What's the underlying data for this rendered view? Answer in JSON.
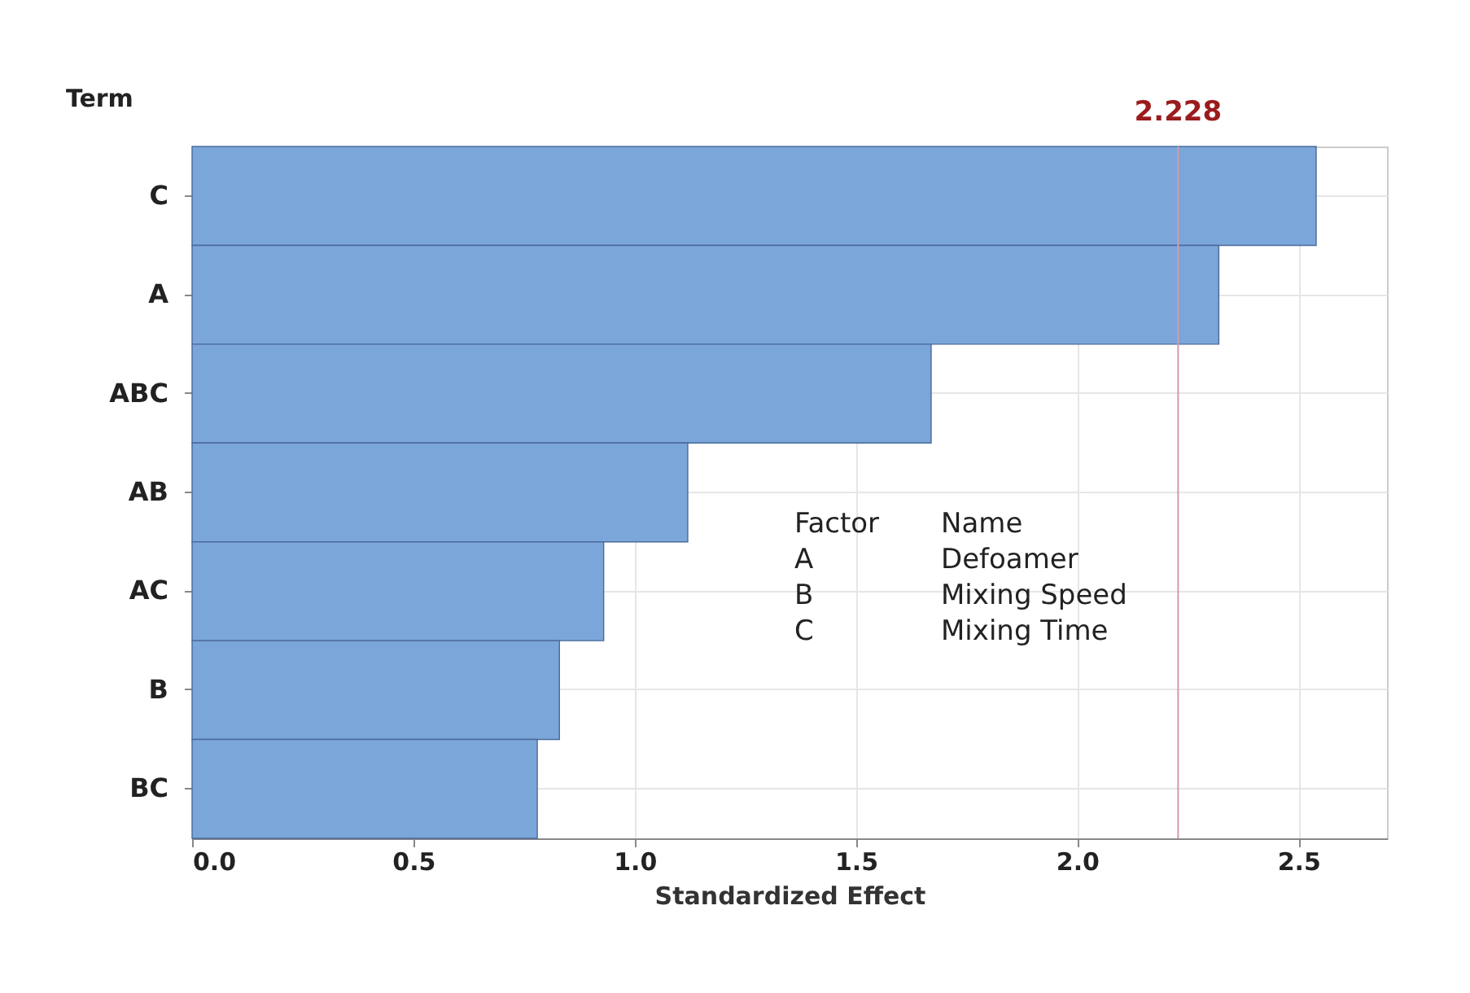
{
  "chart_data": {
    "type": "bar",
    "orientation": "horizontal",
    "ylabel": "Term",
    "xlabel": "Standardized Effect",
    "categories": [
      "C",
      "A",
      "ABC",
      "AB",
      "AC",
      "B",
      "BC"
    ],
    "values": [
      2.54,
      2.32,
      1.67,
      1.12,
      0.93,
      0.83,
      0.78
    ],
    "color": "#7ba6d9",
    "xlim": [
      0,
      2.7
    ],
    "xticks": [
      {
        "value": 0,
        "label": "0.0"
      },
      0.5,
      {
        "value": 1,
        "label": "1.0"
      },
      1.5,
      {
        "value": 2,
        "label": "2.0"
      },
      2.5
    ],
    "grid": true,
    "ref_lines": [
      {
        "axis": "x",
        "value": 2.228,
        "label": "2.228",
        "color": "#d49aa6"
      }
    ],
    "annotations": [
      "Factor\tName",
      "A\tDefoamer",
      "B\tMixing Speed",
      "C\tMixing Time"
    ]
  }
}
